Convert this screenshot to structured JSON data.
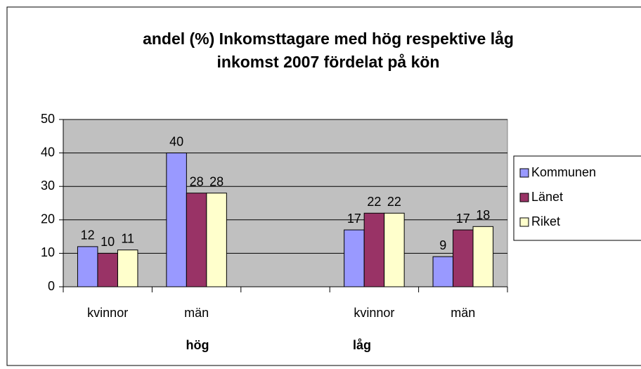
{
  "chart_data": {
    "type": "bar",
    "title": "andel (%) Inkomsttagare med hög respektive låg inkomst 2007 fördelat på kön",
    "categories": [
      "kvinnor",
      "män",
      null,
      "kvinnor",
      "män"
    ],
    "groups": [
      "hög",
      "låg"
    ],
    "series": [
      {
        "name": "Kommunen",
        "color": "#9999ff",
        "values": [
          12,
          40,
          null,
          17,
          9
        ]
      },
      {
        "name": "Länet",
        "color": "#993366",
        "values": [
          10,
          28,
          null,
          22,
          17
        ]
      },
      {
        "name": "Riket",
        "color": "#ffffcc",
        "values": [
          11,
          28,
          null,
          22,
          18
        ]
      }
    ],
    "ylim": [
      0,
      50
    ],
    "yticks": [
      0,
      10,
      20,
      30,
      40,
      50
    ],
    "grid": true,
    "legend": "right"
  }
}
